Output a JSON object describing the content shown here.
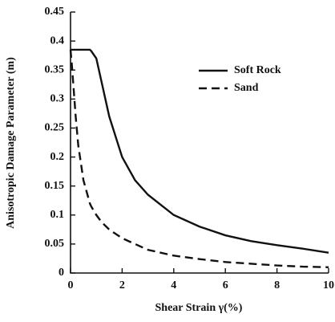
{
  "chart_data": {
    "type": "line",
    "x_label": "Shear Strain γ(%)",
    "y_label": "Anisotropic Damage Parameter (m)",
    "x": [
      0,
      0.05,
      0.1,
      0.2,
      0.3,
      0.5,
      0.75,
      0.8,
      1,
      1.2,
      1.5,
      2,
      2.5,
      3,
      4,
      5,
      6,
      7,
      8,
      9,
      10
    ],
    "series": [
      {
        "name": "Soft Rock",
        "color": "#111111",
        "dash": "none",
        "values": [
          0.385,
          0.385,
          0.385,
          0.385,
          0.385,
          0.385,
          0.385,
          0.383,
          0.37,
          0.33,
          0.27,
          0.2,
          0.16,
          0.135,
          0.1,
          0.08,
          0.065,
          0.055,
          0.048,
          0.042,
          0.035
        ]
      },
      {
        "name": "Sand",
        "color": "#111111",
        "dash": "10,6",
        "values": [
          0.385,
          0.36,
          0.33,
          0.27,
          0.22,
          0.16,
          0.12,
          0.115,
          0.1,
          0.088,
          0.075,
          0.06,
          0.05,
          0.04,
          0.03,
          0.024,
          0.019,
          0.016,
          0.013,
          0.011,
          0.01
        ]
      }
    ],
    "xlim": [
      0,
      10
    ],
    "ylim": [
      0,
      0.45
    ],
    "xticks": [
      0,
      2,
      4,
      6,
      8,
      10
    ],
    "yticks": [
      0,
      0.05,
      0.1,
      0.15,
      0.2,
      0.25,
      0.3,
      0.35,
      0.4,
      0.45
    ],
    "legend": "upper right"
  }
}
